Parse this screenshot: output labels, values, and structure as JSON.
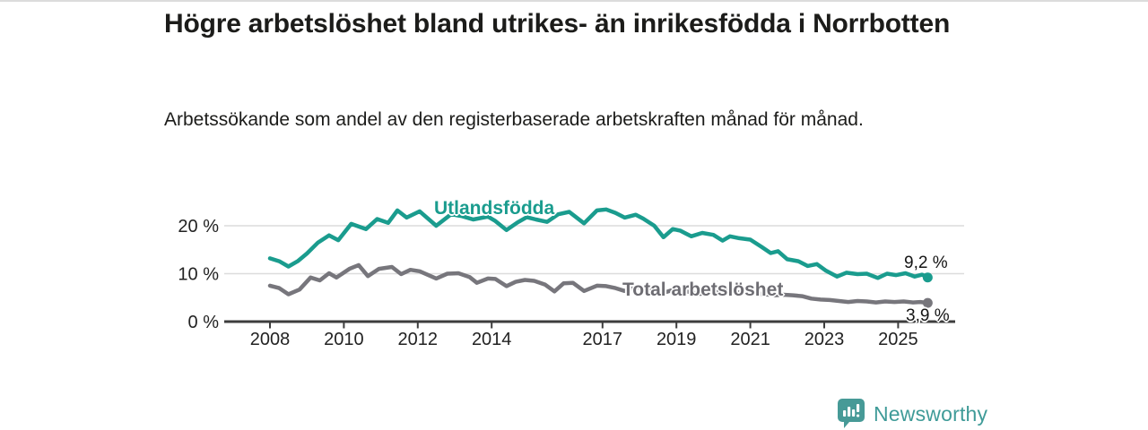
{
  "header": {},
  "chart_data": {
    "type": "line",
    "title": "Högre arbetslöshet bland utrikes- än inrikesfödda i Norrbotten",
    "subtitle": "Arbetssökande som andel av den registerbaserade arbetskraften månad för månad.",
    "y_unit": "%",
    "xlim": [
      2006.8,
      2026.8
    ],
    "ylim": [
      0,
      25
    ],
    "grid": "horizontal",
    "legend_position": "inline-labels",
    "x_ticks": [
      2008,
      2010,
      2012,
      2014,
      2017,
      2019,
      2021,
      2023,
      2025
    ],
    "y_ticks": [
      {
        "value": 0,
        "label": "0 %"
      },
      {
        "value": 10,
        "label": "10 %"
      },
      {
        "value": 20,
        "label": "20 %"
      }
    ],
    "axis_color": "#3d3d3d",
    "grid_color": "#dcdcdc",
    "series": [
      {
        "name": "Utlandsfödda",
        "color": "#1a9c8e",
        "end_label": "9,2 %",
        "last_value": 9.2,
        "points": [
          [
            2008.0,
            13.2
          ],
          [
            2008.25,
            12.6
          ],
          [
            2008.5,
            11.5
          ],
          [
            2008.75,
            12.6
          ],
          [
            2009.0,
            14.2
          ],
          [
            2009.3,
            16.5
          ],
          [
            2009.6,
            18.0
          ],
          [
            2009.85,
            17.0
          ],
          [
            2010.2,
            20.4
          ],
          [
            2010.6,
            19.3
          ],
          [
            2010.9,
            21.4
          ],
          [
            2011.2,
            20.6
          ],
          [
            2011.45,
            23.2
          ],
          [
            2011.7,
            21.7
          ],
          [
            2012.05,
            23.0
          ],
          [
            2012.5,
            20.0
          ],
          [
            2012.9,
            22.4
          ],
          [
            2013.2,
            22.0
          ],
          [
            2013.5,
            21.3
          ],
          [
            2013.9,
            21.9
          ],
          [
            2014.1,
            21.0
          ],
          [
            2014.4,
            19.1
          ],
          [
            2014.7,
            20.7
          ],
          [
            2014.95,
            21.8
          ],
          [
            2015.2,
            21.3
          ],
          [
            2015.5,
            20.8
          ],
          [
            2015.8,
            22.4
          ],
          [
            2016.1,
            22.9
          ],
          [
            2016.5,
            20.5
          ],
          [
            2016.85,
            23.2
          ],
          [
            2017.1,
            23.4
          ],
          [
            2017.35,
            22.7
          ],
          [
            2017.6,
            21.7
          ],
          [
            2017.9,
            22.3
          ],
          [
            2018.1,
            21.5
          ],
          [
            2018.4,
            20.0
          ],
          [
            2018.65,
            17.6
          ],
          [
            2018.9,
            19.3
          ],
          [
            2019.1,
            19.0
          ],
          [
            2019.4,
            17.8
          ],
          [
            2019.7,
            18.5
          ],
          [
            2020.0,
            18.1
          ],
          [
            2020.25,
            16.9
          ],
          [
            2020.45,
            17.8
          ],
          [
            2020.7,
            17.4
          ],
          [
            2021.0,
            17.1
          ],
          [
            2021.3,
            15.6
          ],
          [
            2021.55,
            14.3
          ],
          [
            2021.75,
            14.7
          ],
          [
            2022.0,
            13.0
          ],
          [
            2022.3,
            12.6
          ],
          [
            2022.55,
            11.6
          ],
          [
            2022.8,
            12.0
          ],
          [
            2023.05,
            10.6
          ],
          [
            2023.35,
            9.4
          ],
          [
            2023.6,
            10.2
          ],
          [
            2023.9,
            9.9
          ],
          [
            2024.15,
            10.0
          ],
          [
            2024.45,
            9.1
          ],
          [
            2024.7,
            10.0
          ],
          [
            2024.95,
            9.7
          ],
          [
            2025.2,
            10.1
          ],
          [
            2025.45,
            9.4
          ],
          [
            2025.65,
            9.8
          ],
          [
            2025.8,
            9.2
          ]
        ]
      },
      {
        "name": "Total arbetslöshet",
        "color": "#77767c",
        "end_label": "3,9 %",
        "last_value": 3.9,
        "points": [
          [
            2008.0,
            7.5
          ],
          [
            2008.25,
            7.0
          ],
          [
            2008.5,
            5.7
          ],
          [
            2008.8,
            6.7
          ],
          [
            2009.1,
            9.2
          ],
          [
            2009.35,
            8.6
          ],
          [
            2009.6,
            10.1
          ],
          [
            2009.8,
            9.2
          ],
          [
            2010.15,
            11.0
          ],
          [
            2010.4,
            11.8
          ],
          [
            2010.65,
            9.5
          ],
          [
            2010.95,
            11.0
          ],
          [
            2011.3,
            11.4
          ],
          [
            2011.55,
            9.9
          ],
          [
            2011.8,
            10.8
          ],
          [
            2012.05,
            10.5
          ],
          [
            2012.5,
            9.0
          ],
          [
            2012.8,
            10.0
          ],
          [
            2013.1,
            10.1
          ],
          [
            2013.4,
            9.3
          ],
          [
            2013.6,
            8.1
          ],
          [
            2013.9,
            9.0
          ],
          [
            2014.1,
            8.9
          ],
          [
            2014.4,
            7.4
          ],
          [
            2014.65,
            8.3
          ],
          [
            2014.9,
            8.7
          ],
          [
            2015.15,
            8.5
          ],
          [
            2015.45,
            7.7
          ],
          [
            2015.7,
            6.3
          ],
          [
            2015.95,
            8.0
          ],
          [
            2016.2,
            8.1
          ],
          [
            2016.5,
            6.4
          ],
          [
            2016.85,
            7.5
          ],
          [
            2017.1,
            7.4
          ],
          [
            2017.35,
            7.0
          ],
          [
            2017.6,
            6.4
          ],
          [
            2017.9,
            7.2
          ],
          [
            2018.1,
            7.0
          ],
          [
            2018.4,
            6.4
          ],
          [
            2018.65,
            6.0
          ],
          [
            2018.9,
            6.6
          ],
          [
            2019.1,
            6.6
          ],
          [
            2019.4,
            6.1
          ],
          [
            2019.65,
            5.8
          ],
          [
            2019.9,
            6.2
          ],
          [
            2020.1,
            6.4
          ],
          [
            2020.4,
            6.5
          ],
          [
            2020.65,
            6.1
          ],
          [
            2020.9,
            6.2
          ],
          [
            2021.1,
            6.0
          ],
          [
            2021.4,
            5.7
          ],
          [
            2021.65,
            5.5
          ],
          [
            2021.9,
            5.6
          ],
          [
            2022.15,
            5.5
          ],
          [
            2022.4,
            5.3
          ],
          [
            2022.65,
            4.8
          ],
          [
            2022.9,
            4.6
          ],
          [
            2023.15,
            4.5
          ],
          [
            2023.4,
            4.3
          ],
          [
            2023.65,
            4.1
          ],
          [
            2023.9,
            4.3
          ],
          [
            2024.15,
            4.2
          ],
          [
            2024.4,
            4.0
          ],
          [
            2024.65,
            4.2
          ],
          [
            2024.9,
            4.1
          ],
          [
            2025.15,
            4.2
          ],
          [
            2025.4,
            4.0
          ],
          [
            2025.6,
            4.1
          ],
          [
            2025.8,
            3.9
          ]
        ]
      }
    ],
    "annotations": {
      "series1_inline_label": "Utlandsfödda",
      "series2_inline_label": "Total arbetslöshet",
      "series1_end_value_label": "9,2 %",
      "series2_end_value_label": "3,9 %"
    }
  },
  "footer": {
    "brand": "Newsworthy",
    "brand_color": "#3f9b98",
    "logo_icon": "bar-chart-speech-bubble",
    "logo_bg_color": "#479a97"
  }
}
